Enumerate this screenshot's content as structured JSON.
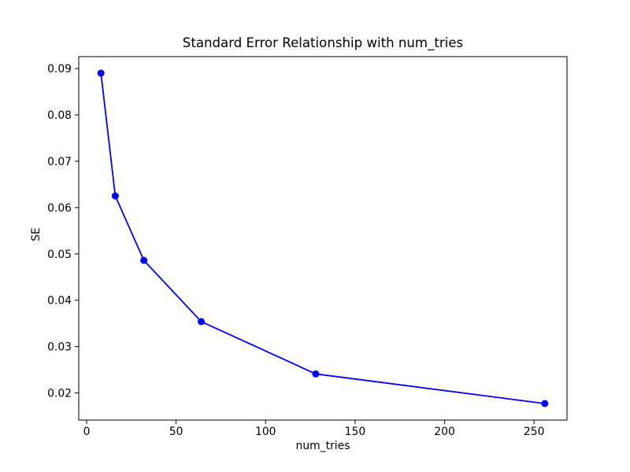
{
  "chart_data": {
    "type": "line",
    "title": "Standard Error Relationship with num_tries",
    "xlabel": "num_tries",
    "ylabel": "SE",
    "x": [
      8,
      16,
      32,
      64,
      128,
      256
    ],
    "y": [
      0.089,
      0.0625,
      0.0486,
      0.0354,
      0.0241,
      0.0177
    ],
    "series_name": "SE",
    "line_color": "#0000ff",
    "marker": "circle",
    "marker_color": "#0000ff",
    "xlim": [
      -4.4,
      268.4
    ],
    "ylim": [
      0.01414,
      0.09257
    ],
    "xticks": [
      0,
      50,
      100,
      150,
      200,
      250
    ],
    "xtick_labels": [
      "0",
      "50",
      "100",
      "150",
      "200",
      "250"
    ],
    "yticks": [
      0.02,
      0.03,
      0.04,
      0.05,
      0.06,
      0.07,
      0.08,
      0.09
    ],
    "ytick_labels": [
      "0.02",
      "0.03",
      "0.04",
      "0.05",
      "0.06",
      "0.07",
      "0.08",
      "0.09"
    ],
    "grid": false,
    "legend_position": "none",
    "axes_color": "#000000",
    "background_color": "#ffffff"
  }
}
